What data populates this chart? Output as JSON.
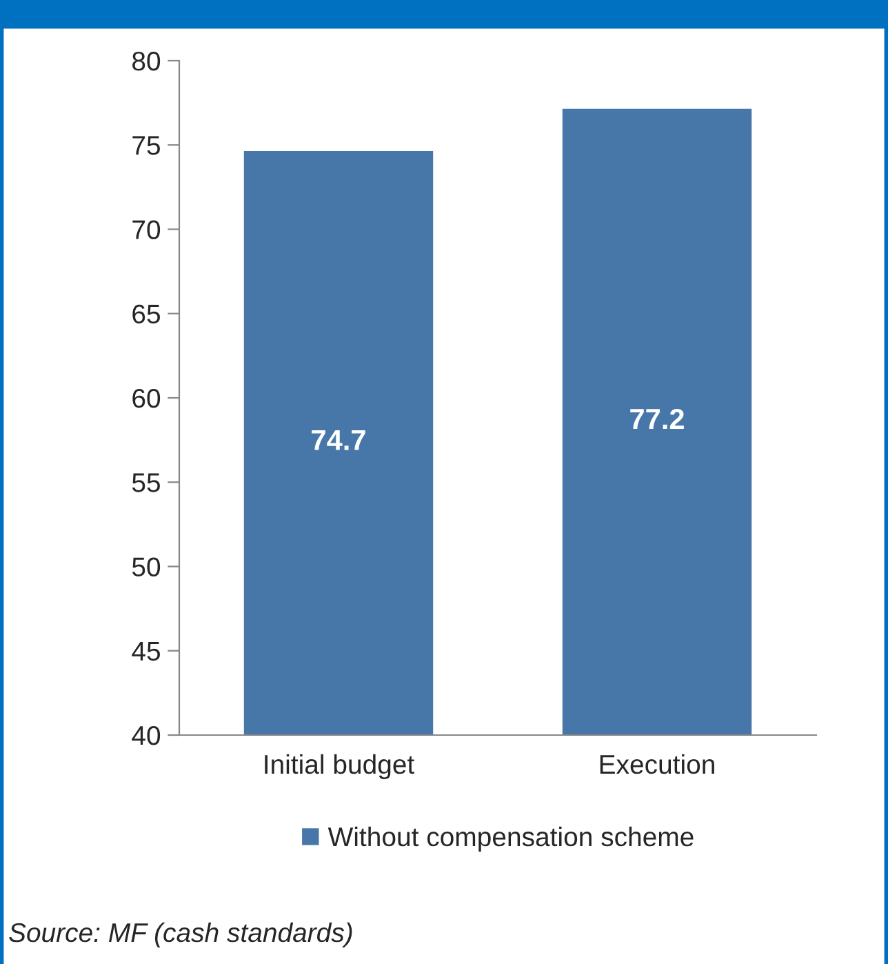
{
  "chart_data": {
    "type": "bar",
    "categories": [
      "Initial budget",
      "Execution"
    ],
    "series": [
      {
        "name": "Without compensation scheme",
        "color": "#4677a8",
        "values": [
          74.7,
          77.2
        ]
      }
    ],
    "ylim": [
      40,
      80
    ],
    "yticks": [
      40,
      45,
      50,
      55,
      60,
      65,
      70,
      75,
      80
    ],
    "data_labels": true,
    "grid": false,
    "legend": "bottom",
    "annotations": [
      "Source: MF (cash standards)"
    ]
  }
}
